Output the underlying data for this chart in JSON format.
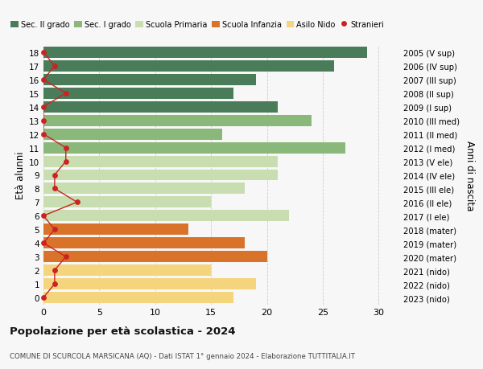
{
  "ages": [
    0,
    1,
    2,
    3,
    4,
    5,
    6,
    7,
    8,
    9,
    10,
    11,
    12,
    13,
    14,
    15,
    16,
    17,
    18
  ],
  "years": [
    "2023 (nido)",
    "2022 (nido)",
    "2021 (nido)",
    "2020 (mater)",
    "2019 (mater)",
    "2018 (mater)",
    "2017 (I ele)",
    "2016 (II ele)",
    "2015 (III ele)",
    "2014 (IV ele)",
    "2013 (V ele)",
    "2012 (I med)",
    "2011 (II med)",
    "2010 (III med)",
    "2009 (I sup)",
    "2008 (II sup)",
    "2007 (III sup)",
    "2006 (IV sup)",
    "2005 (V sup)"
  ],
  "bar_values": [
    17,
    19,
    15,
    20,
    18,
    13,
    22,
    15,
    18,
    21,
    21,
    27,
    16,
    24,
    21,
    17,
    19,
    26,
    29
  ],
  "bar_colors": [
    "#f5d47e",
    "#f5d47e",
    "#f5d47e",
    "#d9732a",
    "#d9732a",
    "#d9732a",
    "#c8ddb0",
    "#c8ddb0",
    "#c8ddb0",
    "#c8ddb0",
    "#c8ddb0",
    "#8ab87a",
    "#8ab87a",
    "#8ab87a",
    "#4a7c59",
    "#4a7c59",
    "#4a7c59",
    "#4a7c59",
    "#4a7c59"
  ],
  "stranieri_values": [
    0,
    1,
    1,
    2,
    0,
    1,
    0,
    3,
    1,
    1,
    2,
    2,
    0,
    0,
    0,
    2,
    0,
    1,
    0
  ],
  "title": "Popolazione per età scolastica - 2024",
  "subtitle": "COMUNE DI SCURCOLA MARSICANA (AQ) - Dati ISTAT 1° gennaio 2024 - Elaborazione TUTTITALIA.IT",
  "ylabel_left": "Età alunni",
  "ylabel_right": "Anni di nascita",
  "xlim": [
    0,
    32
  ],
  "xticks": [
    0,
    5,
    10,
    15,
    20,
    25,
    30
  ],
  "legend_labels": [
    "Sec. II grado",
    "Sec. I grado",
    "Scuola Primaria",
    "Scuola Infanzia",
    "Asilo Nido",
    "Stranieri"
  ],
  "legend_colors": [
    "#4a7c59",
    "#8ab87a",
    "#c8ddb0",
    "#d9732a",
    "#f5d47e",
    "#cc2222"
  ],
  "bg_color": "#f7f7f7"
}
